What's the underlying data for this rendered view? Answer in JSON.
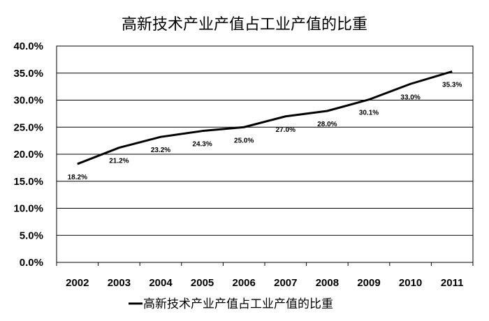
{
  "chart_data": {
    "type": "line",
    "title": "高新技术产业产值占工业产值的比重",
    "xlabel": "",
    "ylabel": "",
    "categories": [
      "2002",
      "2003",
      "2004",
      "2005",
      "2006",
      "2007",
      "2008",
      "2009",
      "2010",
      "2011"
    ],
    "series": [
      {
        "name": "高新技术产业产值占工业产值的比重",
        "values": [
          18.2,
          21.2,
          23.2,
          24.3,
          25.0,
          27.0,
          28.0,
          30.1,
          33.0,
          35.3
        ],
        "labels": [
          "18.2%",
          "21.2%",
          "23.2%",
          "24.3%",
          "25.0%",
          "27.0%",
          "28.0%",
          "30.1%",
          "33.0%",
          "35.3%"
        ],
        "color": "#000000"
      }
    ],
    "ylim": [
      0,
      40
    ],
    "y_ticks": [
      "0.0%",
      "5.0%",
      "10.0%",
      "15.0%",
      "20.0%",
      "25.0%",
      "30.0%",
      "35.0%",
      "40.0%"
    ],
    "grid": true,
    "legend_position": "bottom"
  }
}
